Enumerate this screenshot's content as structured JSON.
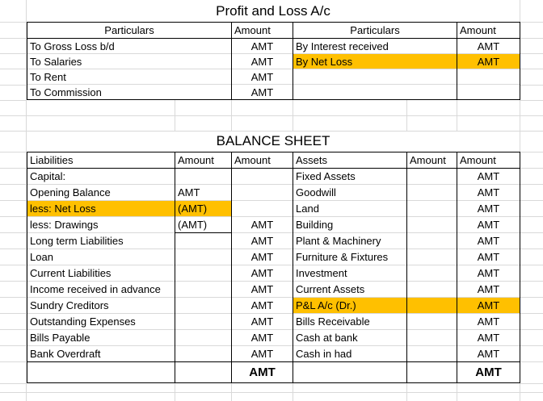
{
  "colors": {
    "highlight": "#FFC000"
  },
  "pnl": {
    "title": "Profit and Loss A/c",
    "headers": {
      "particulars_debit": "Particulars",
      "amount_debit": "Amount",
      "particulars_credit": "Particulars",
      "amount_credit": "Amount"
    },
    "rows": [
      {
        "debit_particulars": "To Gross Loss b/d",
        "debit_amount": "AMT",
        "credit_particulars": "By Interest received",
        "credit_amount": "AMT"
      },
      {
        "debit_particulars": "To Salaries",
        "debit_amount": "AMT",
        "credit_particulars": "By Net Loss",
        "credit_amount": "AMT"
      },
      {
        "debit_particulars": "To Rent",
        "debit_amount": "AMT",
        "credit_particulars": "",
        "credit_amount": ""
      },
      {
        "debit_particulars": "To Commission",
        "debit_amount": "AMT",
        "credit_particulars": "",
        "credit_amount": ""
      }
    ]
  },
  "balance_sheet": {
    "title": "BALANCE SHEET",
    "headers": {
      "liabilities": "Liabilities",
      "amount_1": "Amount",
      "amount_2": "Amount",
      "assets": "Assets",
      "amount_3": "Amount",
      "amount_4": "Amount"
    },
    "rows": [
      {
        "liability": "Capital:",
        "amount_1": "",
        "amount_2": "",
        "asset": "Fixed Assets",
        "amount_3": "",
        "amount_4": "AMT"
      },
      {
        "liability": "Opening Balance",
        "amount_1": "AMT",
        "amount_2": "",
        "asset": "Goodwill",
        "amount_3": "",
        "amount_4": "AMT"
      },
      {
        "liability": "less: Net Loss",
        "amount_1": "(AMT)",
        "amount_2": "",
        "asset": "Land",
        "amount_3": "",
        "amount_4": "AMT"
      },
      {
        "liability": "less: Drawings",
        "amount_1": "(AMT)",
        "amount_2": "AMT",
        "asset": "Building",
        "amount_3": "",
        "amount_4": "AMT"
      },
      {
        "liability": "Long term Liabilities",
        "amount_1": "",
        "amount_2": "AMT",
        "asset": "Plant & Machinery",
        "amount_3": "",
        "amount_4": "AMT"
      },
      {
        "liability": "Loan",
        "amount_1": "",
        "amount_2": "AMT",
        "asset": "Furniture & Fixtures",
        "amount_3": "",
        "amount_4": "AMT"
      },
      {
        "liability": "Current Liabilities",
        "amount_1": "",
        "amount_2": "AMT",
        "asset": "Investment",
        "amount_3": "",
        "amount_4": "AMT"
      },
      {
        "liability": "Income received in advance",
        "amount_1": "",
        "amount_2": "AMT",
        "asset": "Current Assets",
        "amount_3": "",
        "amount_4": "AMT"
      },
      {
        "liability": "Sundry Creditors",
        "amount_1": "",
        "amount_2": "AMT",
        "asset": "P&L A/c (Dr.)",
        "amount_3": "",
        "amount_4": "AMT"
      },
      {
        "liability": "Outstanding Expenses",
        "amount_1": "",
        "amount_2": "AMT",
        "asset": "Bills Receivable",
        "amount_3": "",
        "amount_4": "AMT"
      },
      {
        "liability": "Bills Payable",
        "amount_1": "",
        "amount_2": "AMT",
        "asset": "Cash at bank",
        "amount_3": "",
        "amount_4": "AMT"
      },
      {
        "liability": "Bank Overdraft",
        "amount_1": "",
        "amount_2": "AMT",
        "asset": "Cash in had",
        "amount_3": "",
        "amount_4": "AMT"
      }
    ],
    "total": {
      "liabilities_total": "AMT",
      "assets_total": "AMT"
    }
  }
}
